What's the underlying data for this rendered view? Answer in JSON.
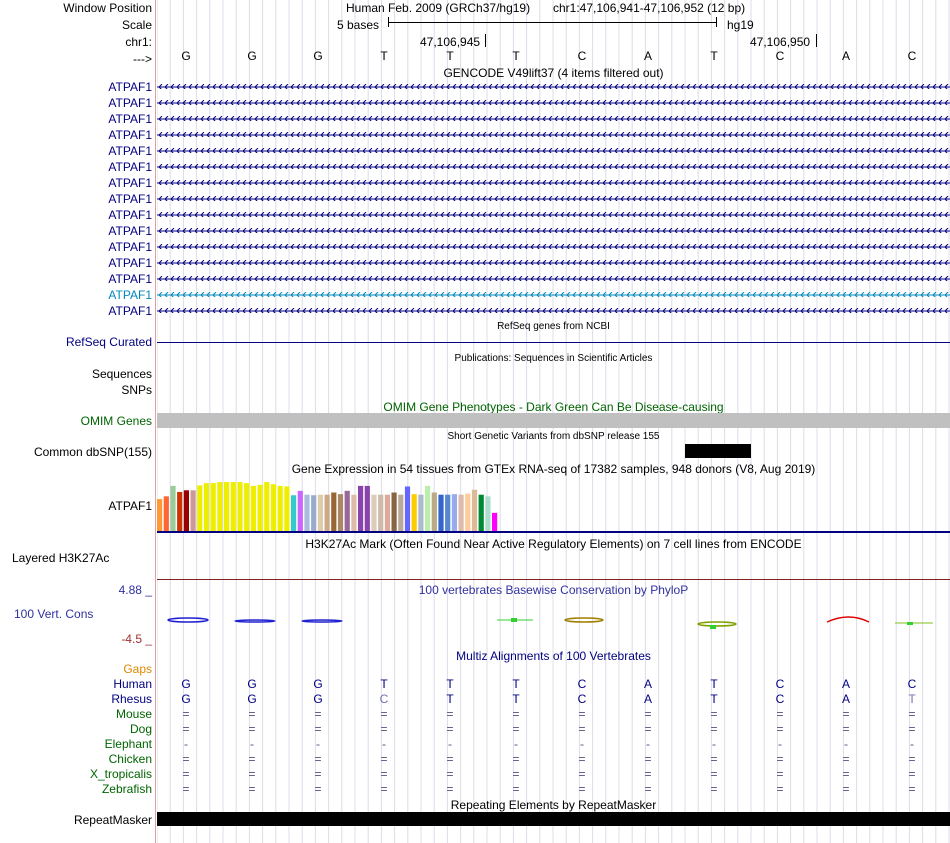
{
  "header": {
    "window_position_label": "Window Position",
    "scale_label": "Scale",
    "chrom_label": "chr1:",
    "strand_label": "--->",
    "assembly_text": "Human Feb. 2009 (GRCh37/hg19)",
    "position_text": "chr1:47,106,941-47,106,952 (12 bp)",
    "scale_text": "5 bases",
    "db_text": "hg19",
    "coord1": "47,106,945",
    "coord2": "47,106,950"
  },
  "bases": [
    "G",
    "G",
    "G",
    "T",
    "T",
    "T",
    "C",
    "A",
    "T",
    "C",
    "A",
    "C"
  ],
  "gencode": {
    "title": "GENCODE V49lift37 (4 items filtered out)",
    "labels": [
      "ATPAF1",
      "ATPAF1",
      "ATPAF1",
      "ATPAF1",
      "ATPAF1",
      "ATPAF1",
      "ATPAF1",
      "ATPAF1",
      "ATPAF1",
      "ATPAF1",
      "ATPAF1",
      "ATPAF1",
      "ATPAF1",
      "ATPAF1",
      "ATPAF1"
    ]
  },
  "refseq": {
    "title": "RefSeq genes from NCBI",
    "label": "RefSeq Curated"
  },
  "publications": {
    "title": "Publications: Sequences in Scientific Articles",
    "label1": "Sequences",
    "label2": "SNPs"
  },
  "omim": {
    "title": "OMIM Gene Phenotypes - Dark Green Can Be Disease-causing",
    "label": "OMIM Genes"
  },
  "dbsnp": {
    "title": "Short Genetic Variants from dbSNP release 155",
    "label": "Common dbSNP(155)"
  },
  "gtex": {
    "title": "Gene Expression in 54 tissues from GTEx RNA-seq of 17382 samples, 948 donors (V8, Aug 2019)",
    "label": "ATPAF1",
    "bars": [
      {
        "h": 0.58,
        "c": "#ff9933"
      },
      {
        "h": 0.63,
        "c": "#ff6633"
      },
      {
        "h": 0.82,
        "c": "#99cc99"
      },
      {
        "h": 0.71,
        "c": "#cc3300"
      },
      {
        "h": 0.74,
        "c": "#990000"
      },
      {
        "h": 0.74,
        "c": "#cc9999"
      },
      {
        "h": 0.83,
        "c": "#eeee00"
      },
      {
        "h": 0.87,
        "c": "#eeee00"
      },
      {
        "h": 0.87,
        "c": "#eeee00"
      },
      {
        "h": 0.89,
        "c": "#eeee00"
      },
      {
        "h": 0.89,
        "c": "#eeee00"
      },
      {
        "h": 0.89,
        "c": "#eeee00"
      },
      {
        "h": 0.89,
        "c": "#eeee00"
      },
      {
        "h": 0.87,
        "c": "#eeee00"
      },
      {
        "h": 0.82,
        "c": "#eeee00"
      },
      {
        "h": 0.84,
        "c": "#eeee00"
      },
      {
        "h": 0.89,
        "c": "#eeee00"
      },
      {
        "h": 0.85,
        "c": "#eeee00"
      },
      {
        "h": 0.82,
        "c": "#eeee00"
      },
      {
        "h": 0.81,
        "c": "#eeee00"
      },
      {
        "h": 0.65,
        "c": "#33cccc"
      },
      {
        "h": 0.73,
        "c": "#cc66ff"
      },
      {
        "h": 0.66,
        "c": "#aabbdd"
      },
      {
        "h": 0.65,
        "c": "#99aacc"
      },
      {
        "h": 0.66,
        "c": "#ddccaa"
      },
      {
        "h": 0.66,
        "c": "#ccaa88"
      },
      {
        "h": 0.7,
        "c": "#996633"
      },
      {
        "h": 0.67,
        "c": "#aa8866"
      },
      {
        "h": 0.73,
        "c": "#996699"
      },
      {
        "h": 0.66,
        "c": "#ddbbaa"
      },
      {
        "h": 0.82,
        "c": "#8844aa"
      },
      {
        "h": 0.82,
        "c": "#8844aa"
      },
      {
        "h": 0.66,
        "c": "#ddccbb"
      },
      {
        "h": 0.66,
        "c": "#ccbbaa"
      },
      {
        "h": 0.66,
        "c": "#ddaa99"
      },
      {
        "h": 0.7,
        "c": "#886644"
      },
      {
        "h": 0.66,
        "c": "#bbaa99"
      },
      {
        "h": 0.81,
        "c": "#6666ff"
      },
      {
        "h": 0.67,
        "c": "#ffcc00"
      },
      {
        "h": 0.66,
        "c": "#aabbcc"
      },
      {
        "h": 0.82,
        "c": "#bbeeaa"
      },
      {
        "h": 0.7,
        "c": "#bbaa88"
      },
      {
        "h": 0.66,
        "c": "#3366cc"
      },
      {
        "h": 0.66,
        "c": "#5588cc"
      },
      {
        "h": 0.67,
        "c": "#99aaee"
      },
      {
        "h": 0.66,
        "c": "#ddbbaa"
      },
      {
        "h": 0.68,
        "c": "#ffcc99"
      },
      {
        "h": 0.75,
        "c": "#ddbb99"
      },
      {
        "h": 0.66,
        "c": "#008833"
      },
      {
        "h": 0.63,
        "c": "#aaddcc"
      },
      {
        "h": 0.33,
        "c": "#ff00ff"
      }
    ]
  },
  "h3k27ac": {
    "title": "H3K27Ac Mark (Often Found Near Active Regulatory Elements) on 7 cell lines from ENCODE",
    "label": "Layered H3K27Ac"
  },
  "cons": {
    "title": "100 vertebrates Basewise Conservation by PhyloP",
    "label": "100 Vert. Cons",
    "max": "4.88 _",
    "min": "-4.5 _"
  },
  "multiz": {
    "title": "Multiz Alignments of 100 Vertebrates",
    "gaps_label": "Gaps",
    "species": [
      {
        "name": "Human",
        "color": "#000080",
        "row": [
          "G",
          "G",
          "G",
          "T",
          "T",
          "T",
          "C",
          "A",
          "T",
          "C",
          "A",
          "C"
        ]
      },
      {
        "name": "Rhesus",
        "color": "#000080",
        "row": [
          "G",
          "G",
          "G",
          "C",
          "T",
          "T",
          "C",
          "A",
          "T",
          "C",
          "A",
          "T"
        ]
      },
      {
        "name": "Mouse",
        "color": "#006400",
        "row": [
          "=",
          "=",
          "=",
          "=",
          "=",
          "=",
          "=",
          "=",
          "=",
          "=",
          "=",
          "="
        ]
      },
      {
        "name": "Dog",
        "color": "#006400",
        "row": [
          "=",
          "=",
          "=",
          "=",
          "=",
          "=",
          "=",
          "=",
          "=",
          "=",
          "=",
          "="
        ]
      },
      {
        "name": "Elephant",
        "color": "#006400",
        "row": [
          "-",
          "-",
          "-",
          "-",
          "-",
          "-",
          "-",
          "-",
          "-",
          "-",
          "-",
          "-"
        ]
      },
      {
        "name": "Chicken",
        "color": "#006400",
        "row": [
          "=",
          "=",
          "=",
          "=",
          "=",
          "=",
          "=",
          "=",
          "=",
          "=",
          "=",
          "="
        ]
      },
      {
        "name": "X_tropicalis",
        "color": "#006400",
        "row": [
          "=",
          "=",
          "=",
          "=",
          "=",
          "=",
          "=",
          "=",
          "=",
          "=",
          "=",
          "="
        ]
      },
      {
        "name": "Zebrafish",
        "color": "#006400",
        "row": [
          "=",
          "=",
          "=",
          "=",
          "=",
          "=",
          "=",
          "=",
          "=",
          "=",
          "=",
          "="
        ]
      }
    ]
  },
  "repeatmasker": {
    "title": "Repeating Elements by RepeatMasker",
    "label": "RepeatMasker"
  },
  "colors": {
    "navy": "#000080",
    "omim_green": "#006400",
    "highlight_blue": "#0088bb",
    "gaps_orange": "#dd8800"
  }
}
